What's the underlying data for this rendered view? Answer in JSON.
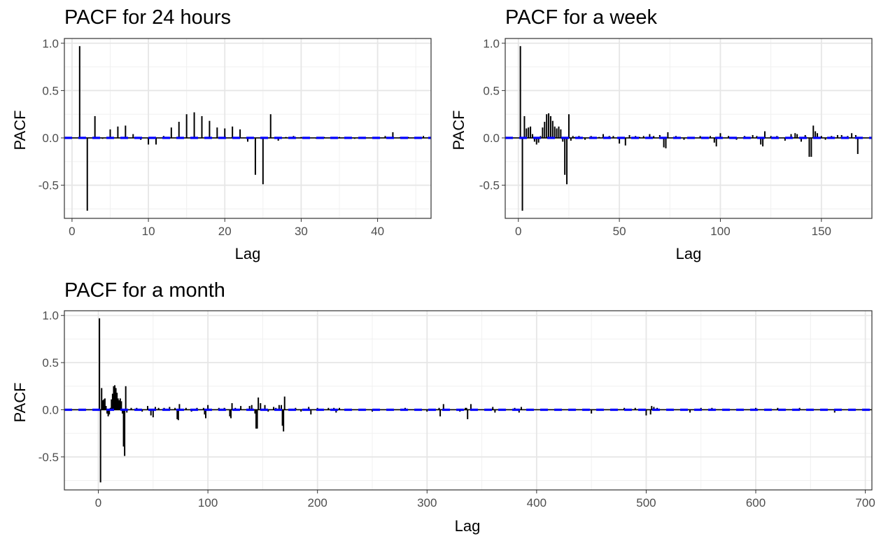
{
  "chart_data": [
    {
      "type": "bar",
      "title": "PACF for 24 hours",
      "xlabel": "Lag",
      "ylabel": "PACF",
      "xlim": [
        -1,
        47
      ],
      "ylim": [
        -0.85,
        1.05
      ],
      "xticks": [
        0,
        10,
        20,
        30,
        40
      ],
      "xtick_labels": [
        "0",
        "10",
        "20",
        "30",
        "40"
      ],
      "yticks": [
        -0.5,
        0.0,
        0.5,
        1.0
      ],
      "ytick_labels": [
        "-0.5",
        "0.0",
        "0.5",
        "1.0"
      ],
      "grid": true,
      "ci_bound": 0.0,
      "x": [
        1,
        2,
        3,
        4,
        5,
        6,
        7,
        8,
        9,
        10,
        11,
        12,
        13,
        14,
        15,
        16,
        17,
        18,
        19,
        20,
        21,
        22,
        23,
        24,
        25,
        26,
        27,
        28,
        29,
        30,
        31,
        32,
        33,
        34,
        35,
        36,
        37,
        38,
        39,
        40,
        41,
        42,
        43,
        44,
        45,
        46
      ],
      "values": [
        0.97,
        -0.77,
        0.23,
        -0.01,
        0.09,
        0.12,
        0.13,
        0.04,
        -0.02,
        -0.07,
        -0.07,
        0.02,
        0.11,
        0.17,
        0.25,
        0.27,
        0.23,
        0.18,
        0.11,
        0.1,
        0.12,
        0.09,
        -0.04,
        -0.39,
        -0.49,
        0.25,
        -0.03,
        0.01,
        0.02,
        0.01,
        0.01,
        -0.01,
        0.01,
        0.0,
        0.01,
        0.01,
        -0.01,
        0.01,
        0.0,
        0.01,
        0.02,
        0.06,
        0.01,
        0.01,
        0.0,
        0.02
      ]
    },
    {
      "type": "bar",
      "title": "PACF for a week",
      "xlabel": "Lag",
      "ylabel": "PACF",
      "xlim": [
        -6.5,
        175
      ],
      "ylim": [
        -0.85,
        1.05
      ],
      "xticks": [
        0,
        50,
        100,
        150
      ],
      "xtick_labels": [
        "0",
        "50",
        "100",
        "150"
      ],
      "yticks": [
        -0.5,
        0.0,
        0.5,
        1.0
      ],
      "ytick_labels": [
        "-0.5",
        "0.0",
        "0.5",
        "1.0"
      ],
      "grid": true,
      "ci_bound": 0.0,
      "x": [
        1,
        2,
        3,
        4,
        5,
        6,
        7,
        8,
        9,
        10,
        11,
        12,
        13,
        14,
        15,
        16,
        17,
        18,
        19,
        20,
        21,
        22,
        23,
        24,
        25,
        26,
        27,
        28,
        30,
        33,
        36,
        40,
        42,
        45,
        47,
        50,
        53,
        55,
        58,
        60,
        62,
        65,
        67,
        70,
        72,
        73,
        74,
        78,
        82,
        86,
        90,
        95,
        97,
        98,
        100,
        104,
        108,
        112,
        116,
        118,
        120,
        121,
        122,
        125,
        128,
        132,
        135,
        137,
        138,
        140,
        142,
        144,
        145,
        146,
        147,
        148,
        150,
        152,
        155,
        158,
        160,
        163,
        165,
        167,
        168
      ],
      "values": [
        0.97,
        -0.77,
        0.23,
        0.1,
        0.11,
        0.12,
        0.04,
        -0.04,
        -0.07,
        -0.05,
        0.02,
        0.11,
        0.17,
        0.25,
        0.26,
        0.23,
        0.18,
        0.12,
        0.1,
        0.12,
        0.09,
        -0.04,
        -0.39,
        -0.49,
        0.25,
        -0.03,
        0.02,
        0.01,
        0.02,
        -0.02,
        0.02,
        0.01,
        0.04,
        0.02,
        0.02,
        -0.06,
        -0.08,
        0.03,
        0.02,
        0.01,
        0.02,
        0.04,
        0.02,
        0.03,
        -0.1,
        -0.11,
        0.06,
        0.02,
        -0.02,
        0.01,
        0.02,
        0.02,
        -0.05,
        -0.09,
        0.05,
        0.02,
        -0.02,
        0.02,
        0.03,
        0.02,
        -0.07,
        -0.09,
        0.07,
        0.02,
        0.02,
        -0.03,
        0.04,
        0.05,
        0.04,
        -0.04,
        0.03,
        -0.2,
        -0.2,
        0.13,
        0.07,
        0.05,
        0.02,
        -0.02,
        0.02,
        0.03,
        0.03,
        0.02,
        0.05,
        0.03,
        -0.17
      ]
    },
    {
      "type": "bar",
      "title": "PACF for a month",
      "xlabel": "Lag",
      "ylabel": "PACF",
      "xlim": [
        -31,
        706
      ],
      "ylim": [
        -0.85,
        1.05
      ],
      "xticks": [
        0,
        100,
        200,
        300,
        400,
        500,
        600,
        700
      ],
      "xtick_labels": [
        "0",
        "100",
        "200",
        "300",
        "400",
        "500",
        "600",
        "700"
      ],
      "yticks": [
        -0.5,
        0.0,
        0.5,
        1.0
      ],
      "ytick_labels": [
        "-0.5",
        "0.0",
        "0.5",
        "1.0"
      ],
      "grid": true,
      "ci_bound": 0.0,
      "x": [
        1,
        2,
        3,
        4,
        5,
        6,
        7,
        8,
        9,
        10,
        11,
        12,
        13,
        14,
        15,
        16,
        17,
        18,
        19,
        20,
        21,
        22,
        23,
        24,
        25,
        26,
        30,
        35,
        40,
        45,
        48,
        50,
        52,
        55,
        60,
        65,
        70,
        72,
        73,
        74,
        80,
        85,
        90,
        96,
        97,
        98,
        100,
        110,
        115,
        120,
        121,
        122,
        125,
        130,
        138,
        140,
        143,
        144,
        145,
        146,
        148,
        152,
        155,
        160,
        162,
        165,
        167,
        168,
        169,
        170,
        180,
        185,
        192,
        194,
        200,
        210,
        215,
        217,
        220,
        250,
        280,
        300,
        311,
        312,
        315,
        330,
        335,
        336,
        337,
        340,
        360,
        362,
        380,
        384,
        386,
        450,
        480,
        490,
        500,
        504,
        505,
        507,
        510,
        540,
        550,
        560,
        600,
        620,
        640,
        672
      ],
      "values": [
        0.97,
        -0.77,
        0.23,
        0.1,
        0.11,
        0.12,
        0.04,
        -0.04,
        -0.07,
        -0.05,
        0.02,
        0.11,
        0.17,
        0.25,
        0.26,
        0.23,
        0.18,
        0.12,
        0.1,
        0.12,
        0.09,
        -0.04,
        -0.39,
        -0.49,
        0.25,
        -0.03,
        0.02,
        0.02,
        -0.02,
        0.04,
        -0.06,
        -0.08,
        0.03,
        0.02,
        0.02,
        0.03,
        0.02,
        -0.1,
        -0.11,
        0.06,
        0.02,
        -0.02,
        0.02,
        0.02,
        -0.05,
        -0.09,
        0.05,
        0.02,
        0.02,
        -0.07,
        -0.09,
        0.07,
        0.02,
        0.04,
        0.04,
        0.05,
        -0.04,
        -0.2,
        -0.2,
        0.13,
        0.07,
        0.05,
        -0.02,
        0.03,
        0.02,
        0.05,
        0.05,
        -0.17,
        -0.23,
        0.14,
        0.02,
        -0.02,
        0.03,
        -0.05,
        0.02,
        0.02,
        0.02,
        -0.03,
        0.02,
        -0.02,
        0.02,
        -0.02,
        0.02,
        -0.07,
        0.06,
        -0.02,
        0.02,
        0.02,
        -0.1,
        0.06,
        0.03,
        -0.03,
        0.02,
        -0.03,
        0.03,
        -0.04,
        0.02,
        0.02,
        -0.06,
        -0.05,
        0.04,
        0.03,
        0.02,
        -0.03,
        0.02,
        0.02,
        0.02,
        0.02,
        0.02,
        -0.03
      ]
    }
  ]
}
